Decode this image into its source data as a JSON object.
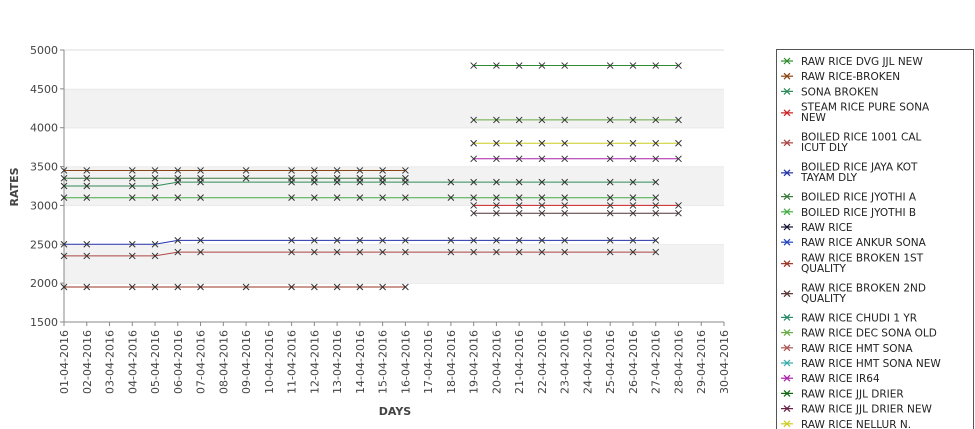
{
  "chart_data": {
    "type": "line",
    "title": "",
    "xlabel": "DAYS",
    "ylabel": "RATES",
    "ylim": [
      1500,
      5000
    ],
    "yticks": [
      1500,
      2000,
      2500,
      3000,
      3500,
      4000,
      4500,
      5000
    ],
    "grid": "alternating horizontal bands",
    "legend_position": "right",
    "x": [
      "01-04-2016",
      "02-04-2016",
      "03-04-2016",
      "04-04-2016",
      "05-04-2016",
      "06-04-2016",
      "07-04-2016",
      "08-04-2016",
      "09-04-2016",
      "10-04-2016",
      "11-04-2016",
      "12-04-2016",
      "13-04-2016",
      "14-04-2016",
      "15-04-2016",
      "16-04-2016",
      "17-04-2016",
      "18-04-2016",
      "19-04-2016",
      "20-04-2016",
      "21-04-2016",
      "22-04-2016",
      "23-04-2016",
      "24-04-2016",
      "25-04-2016",
      "26-04-2016",
      "27-04-2016",
      "28-04-2016",
      "29-04-2016",
      "30-04-2016"
    ],
    "series": [
      {
        "name": "RAW RICE DVG JJL NEW",
        "color": "#2e8b2e",
        "values": [
          null,
          null,
          null,
          null,
          null,
          null,
          null,
          null,
          null,
          null,
          null,
          null,
          null,
          null,
          null,
          null,
          null,
          null,
          4800,
          4800,
          4800,
          4800,
          4800,
          null,
          4800,
          4800,
          4800,
          4800,
          null,
          null
        ]
      },
      {
        "name": "RAW RICE-BROKEN",
        "color": "#8b4513",
        "values": [
          3450,
          3450,
          null,
          3450,
          3450,
          3450,
          3450,
          null,
          3450,
          null,
          3450,
          3450,
          3450,
          3450,
          3450,
          3450,
          null,
          null,
          null,
          null,
          null,
          null,
          null,
          null,
          null,
          null,
          null,
          null,
          null,
          null
        ]
      },
      {
        "name": "SONA BROKEN",
        "color": "#2e8b57",
        "values": [
          3250,
          3250,
          null,
          3250,
          3250,
          3300,
          3300,
          null,
          null,
          null,
          3300,
          3300,
          3300,
          3300,
          3300,
          3300,
          null,
          3300,
          3300,
          3300,
          3300,
          3300,
          3300,
          null,
          3300,
          3300,
          3300,
          null,
          null,
          null
        ]
      },
      {
        "name": "STEAM RICE PURE SONA NEW",
        "color": "#cc2222",
        "values": [
          null,
          null,
          null,
          null,
          null,
          null,
          null,
          null,
          null,
          null,
          null,
          null,
          null,
          null,
          null,
          null,
          null,
          null,
          3000,
          3000,
          3000,
          3000,
          3000,
          null,
          3000,
          3000,
          3000,
          3000,
          null,
          null
        ]
      },
      {
        "name": "BOILED RICE 1001 CALICUT DLY",
        "color": "#aa4444",
        "values": [
          2350,
          2350,
          null,
          2350,
          2350,
          2400,
          2400,
          null,
          null,
          null,
          2400,
          2400,
          2400,
          2400,
          2400,
          2400,
          null,
          2400,
          2400,
          2400,
          2400,
          2400,
          2400,
          null,
          2400,
          2400,
          2400,
          null,
          null,
          null
        ]
      },
      {
        "name": "BOILED RICE JAYA KOTTAYAM DLY",
        "color": "#2233aa",
        "values": [
          2500,
          2500,
          null,
          2500,
          2500,
          2550,
          2550,
          null,
          null,
          null,
          2550,
          2550,
          2550,
          2550,
          2550,
          2550,
          null,
          2550,
          2550,
          2550,
          2550,
          2550,
          2550,
          null,
          2550,
          2550,
          2550,
          null,
          null,
          null
        ]
      },
      {
        "name": "BOILED RICE JYOTHI A",
        "color": "#3c7a3c",
        "values": [
          3350,
          3350,
          null,
          3350,
          3350,
          3350,
          3350,
          null,
          3350,
          null,
          3350,
          3350,
          3350,
          3350,
          3350,
          3350,
          null,
          null,
          null,
          null,
          null,
          null,
          null,
          null,
          null,
          null,
          null,
          null,
          null,
          null
        ]
      },
      {
        "name": "BOILED RICE JYOTHI B",
        "color": "#44aa44",
        "values": [
          3100,
          3100,
          null,
          3100,
          3100,
          3100,
          3100,
          null,
          null,
          null,
          3100,
          3100,
          3100,
          3100,
          3100,
          3100,
          null,
          3100,
          3100,
          3100,
          3100,
          3100,
          3100,
          null,
          3100,
          3100,
          3100,
          null,
          null,
          null
        ]
      },
      {
        "name": "RAW RICE",
        "color": "#111133",
        "values": [
          null,
          null,
          null,
          null,
          null,
          null,
          null,
          null,
          null,
          null,
          null,
          null,
          null,
          null,
          null,
          null,
          null,
          null,
          null,
          null,
          null,
          null,
          null,
          null,
          null,
          null,
          null,
          null,
          null,
          null
        ]
      },
      {
        "name": "RAW RICE ANKUR SONA",
        "color": "#2244bb",
        "values": [
          null,
          null,
          null,
          null,
          null,
          null,
          null,
          null,
          null,
          null,
          null,
          null,
          null,
          null,
          null,
          null,
          null,
          null,
          null,
          null,
          null,
          null,
          null,
          null,
          null,
          null,
          null,
          null,
          null,
          null
        ]
      },
      {
        "name": "RAW RICE BROKEN 1ST QUALITY",
        "color": "#993322",
        "values": [
          1950,
          1950,
          null,
          1950,
          1950,
          1950,
          1950,
          null,
          1950,
          null,
          1950,
          1950,
          1950,
          1950,
          1950,
          1950,
          null,
          null,
          null,
          null,
          null,
          null,
          null,
          null,
          null,
          null,
          null,
          null,
          null,
          null
        ]
      },
      {
        "name": "RAW RICE BROKEN 2ND QUALITY",
        "color": "#553333",
        "values": [
          null,
          null,
          null,
          null,
          null,
          null,
          null,
          null,
          null,
          null,
          null,
          null,
          null,
          null,
          null,
          null,
          null,
          null,
          2900,
          2900,
          2900,
          2900,
          2900,
          null,
          2900,
          2900,
          2900,
          2900,
          null,
          null
        ]
      },
      {
        "name": "RAW RICE CHUDI 1 YR",
        "color": "#2a8a6a",
        "values": [
          null,
          null,
          null,
          null,
          null,
          null,
          null,
          null,
          null,
          null,
          null,
          null,
          null,
          null,
          null,
          null,
          null,
          null,
          null,
          null,
          null,
          null,
          null,
          null,
          null,
          null,
          null,
          null,
          null,
          null
        ]
      },
      {
        "name": "RAW RICE DEC SONA OLD",
        "color": "#66aa44",
        "values": [
          null,
          null,
          null,
          null,
          null,
          null,
          null,
          null,
          null,
          null,
          null,
          null,
          null,
          null,
          null,
          null,
          null,
          null,
          4100,
          4100,
          4100,
          4100,
          4100,
          null,
          4100,
          4100,
          4100,
          4100,
          null,
          null
        ]
      },
      {
        "name": "RAW RICE HMT SONA",
        "color": "#aa5555",
        "values": [
          null,
          null,
          null,
          null,
          null,
          null,
          null,
          null,
          null,
          null,
          null,
          null,
          null,
          null,
          null,
          null,
          null,
          null,
          null,
          null,
          null,
          null,
          null,
          null,
          null,
          null,
          null,
          null,
          null,
          null
        ]
      },
      {
        "name": "RAW RICE HMT SONA NEW",
        "color": "#33aaaa",
        "values": [
          null,
          null,
          null,
          null,
          null,
          null,
          null,
          null,
          null,
          null,
          null,
          null,
          null,
          null,
          null,
          null,
          null,
          null,
          null,
          null,
          null,
          null,
          null,
          null,
          null,
          null,
          null,
          null,
          null,
          null
        ]
      },
      {
        "name": "RAW RICE IR64",
        "color": "#aa22aa",
        "values": [
          null,
          null,
          null,
          null,
          null,
          null,
          null,
          null,
          null,
          null,
          null,
          null,
          null,
          null,
          null,
          null,
          null,
          null,
          3600,
          3600,
          3600,
          3600,
          3600,
          null,
          3600,
          3600,
          3600,
          3600,
          null,
          null
        ]
      },
      {
        "name": "RAW RICE JJL DRIER",
        "color": "#116611",
        "values": [
          null,
          null,
          null,
          null,
          null,
          null,
          null,
          null,
          null,
          null,
          null,
          null,
          null,
          null,
          null,
          null,
          null,
          null,
          null,
          null,
          null,
          null,
          null,
          null,
          null,
          null,
          null,
          null,
          null,
          null
        ]
      },
      {
        "name": "RAW RICE JJL DRIER NEW",
        "color": "#662244",
        "values": [
          null,
          null,
          null,
          null,
          null,
          null,
          null,
          null,
          null,
          null,
          null,
          null,
          null,
          null,
          null,
          null,
          null,
          null,
          null,
          null,
          null,
          null,
          null,
          null,
          null,
          null,
          null,
          null,
          null,
          null
        ]
      },
      {
        "name": "RAW RICE NELLUR N.",
        "color": "#cccc22",
        "values": [
          null,
          null,
          null,
          null,
          null,
          null,
          null,
          null,
          null,
          null,
          null,
          null,
          null,
          null,
          null,
          null,
          null,
          null,
          3800,
          3800,
          3800,
          3800,
          3800,
          null,
          3800,
          3800,
          3800,
          3800,
          null,
          null
        ]
      }
    ]
  }
}
